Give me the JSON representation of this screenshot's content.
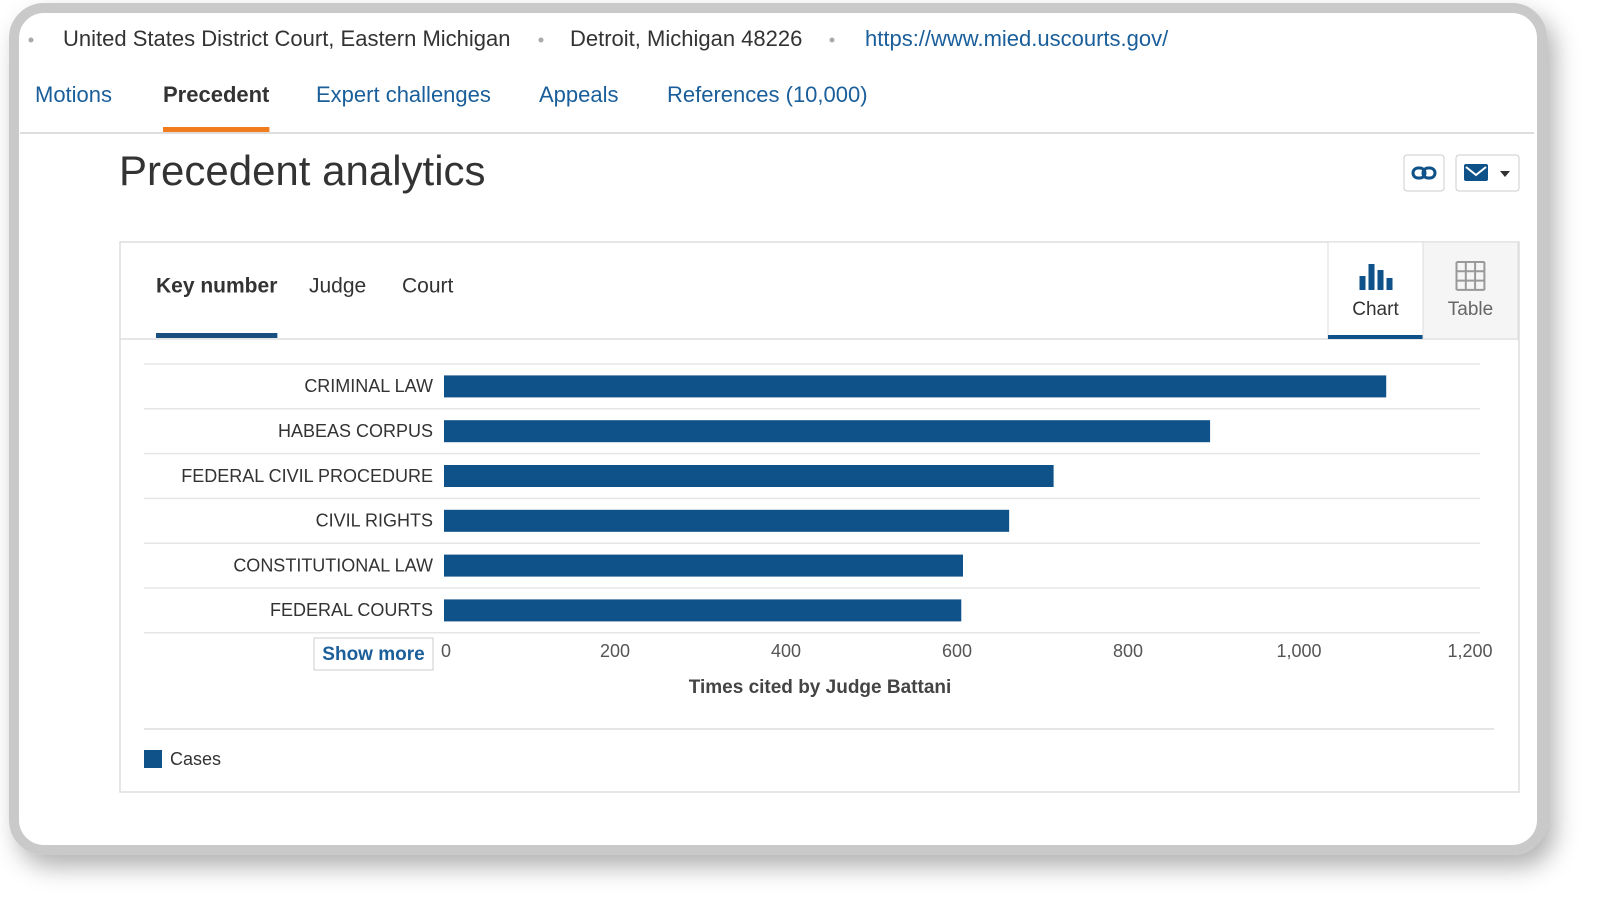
{
  "header": {
    "items": [
      "United States District Court, Eastern Michigan",
      "Detroit, Michigan 48226"
    ],
    "link": "https://www.mied.uscourts.gov/"
  },
  "tabs": [
    "Motions",
    "Precedent",
    "Expert challenges",
    "Appeals",
    "References (10,000)"
  ],
  "active_tab": "Precedent",
  "heading": "Precedent analytics",
  "subtabs": [
    "Key number",
    "Judge",
    "Court"
  ],
  "active_subtab": "Key number",
  "views": [
    "Chart",
    "Table"
  ],
  "active_view": "Chart",
  "show_more": "Show more",
  "chart_data": {
    "type": "bar",
    "orientation": "horizontal",
    "categories": [
      "CRIMINAL LAW",
      "HABEAS CORPUS",
      "FEDERAL CIVIL PROCEDURE",
      "CIVIL RIGHTS",
      "CONSTITUTIONAL LAW",
      "FEDERAL COURTS"
    ],
    "series": [
      {
        "name": "Cases",
        "color": "#0f5189",
        "values": [
          1102,
          896,
          713,
          661,
          607,
          605
        ]
      }
    ],
    "xlim": [
      0,
      1200
    ],
    "xticks": [
      0,
      200,
      400,
      600,
      800,
      {
        "value": 1000,
        "label": "1,000"
      },
      {
        "value": 1200,
        "label": "1,200"
      }
    ],
    "xlabel": "Times cited by Judge Battani"
  }
}
